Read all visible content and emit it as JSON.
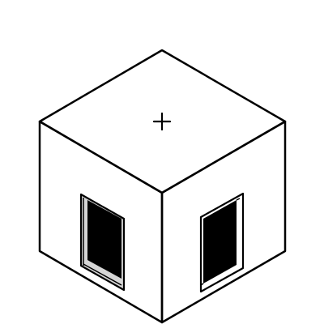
{
  "scene": {
    "background": "#ffffff",
    "top_face_color": "#ffffff",
    "left_face_color": "#c8c8c8",
    "right_face_color": "#ffffff",
    "outline_color": "#000000",
    "window_opening_color": "#000000",
    "window_frame_color_left": "#d6d6d6",
    "window_frame_color_right": "#ffffff",
    "top_marker_icon": "plus-icon"
  }
}
